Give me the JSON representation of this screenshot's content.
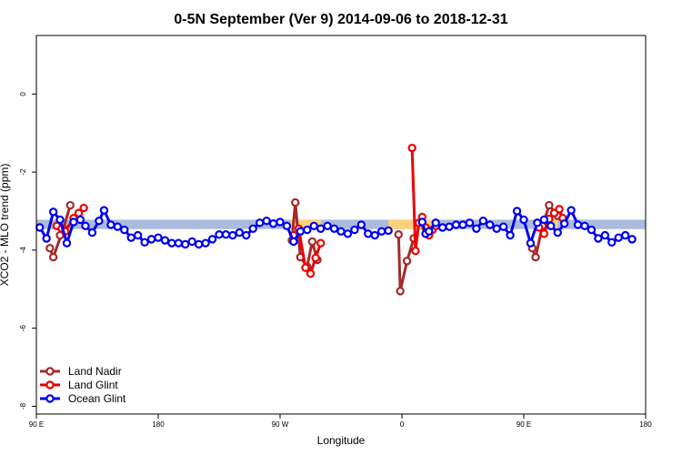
{
  "chart_data": {
    "type": "line",
    "title": "0-5N September (Ver 9)   2014-09-06 to 2018-12-31",
    "xlabel": "Longitude",
    "ylabel": "XCO2 - MLO trend (ppm)",
    "xlim": [
      90,
      450
    ],
    "ylim": [
      -8.2,
      1.5
    ],
    "x_ticks": [
      {
        "value": 90,
        "label": "90 E"
      },
      {
        "value": 162,
        "label": "180"
      },
      {
        "value": 234,
        "label": "90 W"
      },
      {
        "value": 306,
        "label": "0"
      },
      {
        "value": 378,
        "label": "90 E"
      },
      {
        "value": 450,
        "label": "180"
      }
    ],
    "y_ticks": [
      {
        "value": 0,
        "label": "0"
      },
      {
        "value": -2,
        "label": "-2"
      },
      {
        "value": -4,
        "label": "-4"
      },
      {
        "value": -6,
        "label": "-6"
      },
      {
        "value": -8,
        "label": "-8"
      }
    ],
    "reference_band": {
      "y_min": -3.46,
      "y_max": -3.22,
      "color": "#aabbdd"
    },
    "highlight_bands": [
      {
        "x_min": 240,
        "x_max": 258,
        "color": "#fbd27a"
      },
      {
        "x_min": 298,
        "x_max": 324,
        "color": "#fbd27a"
      },
      {
        "x_min": 392,
        "x_max": 398,
        "color": "#fbd27a"
      }
    ],
    "legend": {
      "position": "bottom-left"
    },
    "series": [
      {
        "name": "Land Nadir",
        "color": "#a52a2a",
        "points": [
          [
            98,
            -3.95
          ],
          [
            100,
            -4.18
          ],
          [
            106,
            -3.45
          ],
          [
            110,
            -2.85
          ],
          [
            241,
            -3.75
          ],
          [
            243,
            -2.78
          ],
          [
            246,
            -4.18
          ],
          [
            250,
            -4.42
          ],
          [
            253,
            -3.78
          ],
          [
            256,
            -4.25
          ],
          [
            104,
            -3.62
          ],
          [
            304,
            -3.6
          ],
          [
            305,
            -5.05
          ],
          [
            309,
            -4.28
          ],
          [
            313,
            -3.7
          ],
          [
            383,
            -3.95
          ],
          [
            385,
            -4.18
          ],
          [
            389,
            -3.38
          ],
          [
            393,
            -2.85
          ],
          [
            398,
            -3.12
          ]
        ]
      },
      {
        "name": "Land Glint",
        "color": "#ee0000",
        "points": [
          [
            102,
            -3.38
          ],
          [
            105,
            -3.45
          ],
          [
            107,
            -3.52
          ],
          [
            112,
            -3.18
          ],
          [
            115,
            -3.05
          ],
          [
            118,
            -2.92
          ],
          [
            242,
            -3.62
          ],
          [
            245,
            -3.45
          ],
          [
            249,
            -4.45
          ],
          [
            252,
            -4.6
          ],
          [
            255,
            -4.2
          ],
          [
            258,
            -3.82
          ],
          [
            312,
            -1.38
          ],
          [
            314,
            -4.02
          ],
          [
            316,
            -3.3
          ],
          [
            318,
            -3.15
          ],
          [
            320,
            -3.42
          ],
          [
            322,
            -3.62
          ],
          [
            324,
            -3.48
          ],
          [
            326,
            -3.38
          ],
          [
            387,
            -3.42
          ],
          [
            390,
            -3.58
          ],
          [
            393,
            -3.2
          ],
          [
            396,
            -3.05
          ],
          [
            399,
            -2.95
          ],
          [
            401,
            -3.18
          ]
        ]
      },
      {
        "name": "Ocean Glint",
        "color": "#0000ee",
        "points": [
          [
            92,
            -3.42
          ],
          [
            96,
            -3.7
          ],
          [
            100,
            -3.02
          ],
          [
            104,
            -3.22
          ],
          [
            108,
            -3.82
          ],
          [
            112,
            -3.28
          ],
          [
            116,
            -3.22
          ],
          [
            119,
            -3.38
          ],
          [
            123,
            -3.55
          ],
          [
            127,
            -3.25
          ],
          [
            130,
            -2.98
          ],
          [
            134,
            -3.35
          ],
          [
            138,
            -3.4
          ],
          [
            142,
            -3.48
          ],
          [
            146,
            -3.68
          ],
          [
            150,
            -3.62
          ],
          [
            154,
            -3.8
          ],
          [
            158,
            -3.72
          ],
          [
            162,
            -3.68
          ],
          [
            166,
            -3.75
          ],
          [
            170,
            -3.82
          ],
          [
            174,
            -3.82
          ],
          [
            178,
            -3.85
          ],
          [
            182,
            -3.78
          ],
          [
            186,
            -3.85
          ],
          [
            190,
            -3.82
          ],
          [
            194,
            -3.72
          ],
          [
            198,
            -3.6
          ],
          [
            202,
            -3.6
          ],
          [
            206,
            -3.62
          ],
          [
            210,
            -3.55
          ],
          [
            214,
            -3.62
          ],
          [
            218,
            -3.45
          ],
          [
            222,
            -3.3
          ],
          [
            226,
            -3.25
          ],
          [
            230,
            -3.32
          ],
          [
            234,
            -3.28
          ],
          [
            238,
            -3.38
          ],
          [
            242,
            -3.78
          ],
          [
            246,
            -3.52
          ],
          [
            250,
            -3.48
          ],
          [
            254,
            -3.38
          ],
          [
            258,
            -3.45
          ],
          [
            262,
            -3.38
          ],
          [
            266,
            -3.45
          ],
          [
            270,
            -3.52
          ],
          [
            274,
            -3.58
          ],
          [
            278,
            -3.48
          ],
          [
            282,
            -3.35
          ],
          [
            286,
            -3.58
          ],
          [
            290,
            -3.62
          ],
          [
            294,
            -3.52
          ],
          [
            298,
            -3.5
          ],
          [
            318,
            -3.28
          ],
          [
            320,
            -3.58
          ],
          [
            322,
            -3.52
          ],
          [
            326,
            -3.3
          ],
          [
            330,
            -3.42
          ],
          [
            334,
            -3.4
          ],
          [
            338,
            -3.35
          ],
          [
            342,
            -3.35
          ],
          [
            346,
            -3.3
          ],
          [
            350,
            -3.45
          ],
          [
            354,
            -3.25
          ],
          [
            358,
            -3.35
          ],
          [
            362,
            -3.45
          ],
          [
            366,
            -3.4
          ],
          [
            370,
            -3.62
          ],
          [
            374,
            -3.0
          ],
          [
            378,
            -3.22
          ],
          [
            382,
            -3.82
          ],
          [
            386,
            -3.3
          ],
          [
            390,
            -3.22
          ],
          [
            394,
            -3.38
          ],
          [
            398,
            -3.55
          ],
          [
            402,
            -3.32
          ],
          [
            406,
            -2.98
          ],
          [
            410,
            -3.35
          ],
          [
            414,
            -3.38
          ],
          [
            418,
            -3.48
          ],
          [
            422,
            -3.7
          ],
          [
            426,
            -3.62
          ],
          [
            430,
            -3.8
          ],
          [
            434,
            -3.68
          ],
          [
            438,
            -3.62
          ],
          [
            442,
            -3.72
          ]
        ]
      }
    ]
  }
}
